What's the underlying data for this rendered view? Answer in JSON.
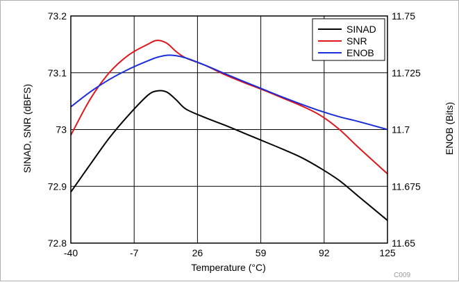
{
  "chart_data": {
    "type": "line",
    "xlabel": "Temperature (°C)",
    "ylabel": "SINAD, SNR (dBFS)",
    "y2label": "ENOB (Bits)",
    "figure_code": "C009",
    "xlim": [
      -40,
      125
    ],
    "ylim": [
      72.8,
      73.2
    ],
    "y2lim": [
      11.65,
      11.75
    ],
    "x_ticks": [
      "-40",
      "-7",
      "26",
      "59",
      "92",
      "125"
    ],
    "x_tick_values": [
      -40,
      -7,
      26,
      59,
      92,
      125
    ],
    "y_ticks": [
      "73.2",
      "73.1",
      "73",
      "72.9",
      "72.8"
    ],
    "y_tick_values": [
      73.2,
      73.1,
      73.0,
      72.9,
      72.8
    ],
    "y2_ticks": [
      "11.75",
      "11.725",
      "11.7",
      "11.675",
      "11.65"
    ],
    "y2_tick_values": [
      11.75,
      11.725,
      11.7,
      11.675,
      11.65
    ],
    "grid": true,
    "legend_position": "top-right",
    "series": [
      {
        "name": "SINAD",
        "color": "#000000",
        "axis": "left",
        "x": [
          -40,
          -30,
          -20,
          -10,
          0,
          5,
          10,
          15,
          20,
          30,
          40,
          50,
          60,
          70,
          80,
          90,
          100,
          110,
          125
        ],
        "y": [
          72.89,
          72.938,
          72.985,
          73.025,
          73.06,
          73.068,
          73.066,
          73.052,
          73.036,
          73.021,
          73.008,
          72.994,
          72.98,
          72.966,
          72.951,
          72.932,
          72.91,
          72.882,
          72.84
        ]
      },
      {
        "name": "SNR",
        "color": "#e0151b",
        "axis": "left",
        "x": [
          -40,
          -30,
          -20,
          -10,
          0,
          5,
          10,
          15,
          20,
          30,
          40,
          50,
          60,
          70,
          80,
          90,
          100,
          110,
          125
        ],
        "y": [
          72.99,
          73.053,
          73.1,
          73.131,
          73.15,
          73.157,
          73.152,
          73.137,
          73.126,
          73.113,
          73.097,
          73.083,
          73.07,
          73.056,
          73.042,
          73.025,
          73.0,
          72.968,
          72.922
        ]
      },
      {
        "name": "ENOB",
        "color": "#1a2ddb",
        "axis": "right",
        "x": [
          -40,
          -30,
          -20,
          -10,
          0,
          5,
          10,
          15,
          20,
          30,
          40,
          50,
          60,
          70,
          80,
          90,
          100,
          110,
          125
        ],
        "y": [
          11.71,
          11.7165,
          11.722,
          11.7265,
          11.7302,
          11.7318,
          11.7327,
          11.7325,
          11.7315,
          11.7283,
          11.7247,
          11.7212,
          11.7178,
          11.7144,
          11.7112,
          11.7082,
          11.7056,
          11.7035,
          11.7
        ]
      }
    ]
  }
}
